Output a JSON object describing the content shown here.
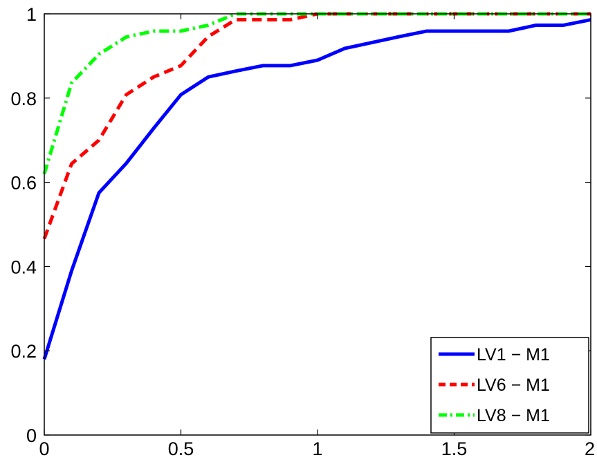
{
  "chart_data": {
    "type": "line",
    "title": "",
    "xlabel": "",
    "ylabel": "",
    "xlim": [
      0,
      2
    ],
    "ylim": [
      0,
      1
    ],
    "xticks": [
      0,
      0.5,
      1,
      1.5,
      2
    ],
    "yticks": [
      0,
      0.2,
      0.4,
      0.6,
      0.8,
      1
    ],
    "x_tick_labels": [
      "0",
      "0.5",
      "1",
      "1.5",
      "2"
    ],
    "y_tick_labels": [
      "0",
      "0.2",
      "0.4",
      "0.6",
      "0.8",
      "1"
    ],
    "grid": false,
    "legend_position": "bottom-right",
    "x": [
      0,
      0.1,
      0.2,
      0.3,
      0.4,
      0.5,
      0.6,
      0.7,
      0.8,
      0.9,
      1.0,
      1.1,
      1.2,
      1.3,
      1.4,
      1.5,
      1.6,
      1.7,
      1.8,
      1.9,
      2.0
    ],
    "series": [
      {
        "name": "LV1 − M1",
        "color": "#0000ff",
        "style": "solid",
        "values": [
          0.18,
          0.39,
          0.575,
          0.645,
          0.728,
          0.808,
          0.85,
          0.864,
          0.877,
          0.877,
          0.89,
          0.918,
          0.932,
          0.946,
          0.959,
          0.959,
          0.959,
          0.959,
          0.973,
          0.973,
          0.986
        ]
      },
      {
        "name": "LV6 − M1",
        "color": "#ff0000",
        "style": "dashed",
        "values": [
          0.466,
          0.644,
          0.7,
          0.808,
          0.85,
          0.877,
          0.946,
          0.986,
          0.986,
          0.986,
          1.0,
          1.0,
          1.0,
          1.0,
          1.0,
          1.0,
          1.0,
          1.0,
          1.0,
          1.0,
          1.0
        ]
      },
      {
        "name": "LV8 − M1",
        "color": "#00ff00",
        "style": "dashdot",
        "values": [
          0.62,
          0.836,
          0.904,
          0.945,
          0.959,
          0.959,
          0.973,
          1.0,
          1.0,
          1.0,
          1.0,
          1.0,
          1.0,
          1.0,
          1.0,
          1.0,
          1.0,
          1.0,
          1.0,
          1.0,
          1.0
        ]
      }
    ]
  }
}
